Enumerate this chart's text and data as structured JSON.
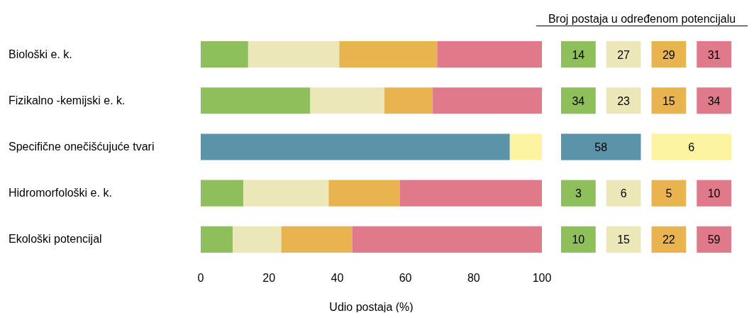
{
  "chart_data": [
    {
      "type": "bar",
      "orientation": "horizontal",
      "stacked": true,
      "categories": [
        "Biološki e. k.",
        "Fizikalno -kemijski e. k.",
        "Specifične onečišćujuće tvari",
        "Hidromorfološki   e. k.",
        "Ekološki potencijal"
      ],
      "series": [
        {
          "color": "#8fbf5a",
          "values": [
            13.9,
            32.1,
            null,
            12.5,
            9.4
          ]
        },
        {
          "color": "#ece7b9",
          "values": [
            26.7,
            21.7,
            null,
            25,
            14.2
          ]
        },
        {
          "color": "#e9b450",
          "values": [
            28.7,
            14.2,
            null,
            20.8,
            20.8
          ]
        },
        {
          "color": "#e07a8a",
          "values": [
            30.7,
            32.1,
            null,
            41.7,
            55.7
          ]
        },
        {
          "color": "#5b93a8",
          "values": [
            null,
            null,
            90.6,
            null,
            null
          ]
        },
        {
          "color": "#fdf4a2",
          "values": [
            null,
            null,
            9.4,
            null,
            null
          ]
        }
      ],
      "xlabel": "Udio postaja (%)",
      "xlim": [
        0,
        100
      ],
      "xticks": [
        0,
        20,
        40,
        60,
        80,
        100
      ],
      "grid": false,
      "legend": false
    },
    {
      "type": "other",
      "title": "Broj postaja u određenom potencijalu",
      "annotations": [
        "14",
        "27",
        "29",
        "31",
        "34",
        "23",
        "15",
        "34",
        "58",
        "6",
        "3",
        "6",
        "5",
        "10",
        "10",
        "15",
        "22",
        "59"
      ],
      "colors": [
        "#8fbf5a",
        "#ece7b9",
        "#e9b450",
        "#e07a8a",
        "#8fbf5a",
        "#ece7b9",
        "#e9b450",
        "#e07a8a",
        "#5b93a8",
        "#fdf4a2",
        "#8fbf5a",
        "#ece7b9",
        "#e9b450",
        "#e07a8a",
        "#8fbf5a",
        "#ece7b9",
        "#e9b450",
        "#e07a8a"
      ]
    }
  ]
}
